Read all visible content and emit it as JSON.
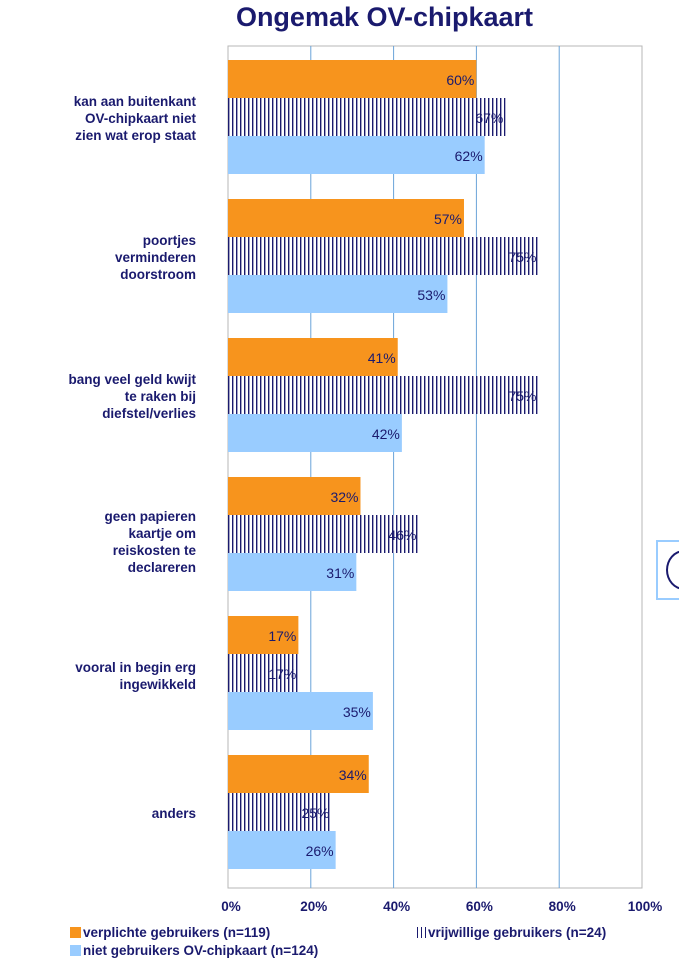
{
  "chart_data": {
    "type": "bar",
    "orientation": "horizontal",
    "title": "Ongemak OV-chipkaart",
    "categories": [
      "kan aan buitenkant OV-chipkaart niet zien wat erop staat",
      "poortjes verminderen doorstroom",
      "bang veel geld kwijt te raken bij diefstel/verlies",
      "geen papieren kaartje om reiskosten te declareren",
      "vooral in begin erg ingewikkeld",
      "anders"
    ],
    "series": [
      {
        "name": "verplichte gebruikers (n=119)",
        "color": "#f7941d",
        "pattern": "solid",
        "values": [
          60,
          57,
          41,
          32,
          17,
          34
        ],
        "labels": [
          "60%",
          "57%",
          "41%",
          "32%",
          "17%",
          "34%"
        ]
      },
      {
        "name": "vrijwillige gebruikers (n=24)",
        "color": "#1a1a6e",
        "pattern": "vertical-stripes",
        "values": [
          67,
          75,
          75,
          46,
          17,
          25
        ],
        "labels": [
          "67%",
          "75%",
          "75%",
          "46%",
          "17%",
          "25%"
        ]
      },
      {
        "name": "niet gebruikers OV-chipkaart (n=124)",
        "color": "#99ccff",
        "pattern": "solid",
        "values": [
          62,
          53,
          42,
          31,
          35,
          26
        ],
        "labels": [
          "62%",
          "53%",
          "42%",
          "31%",
          "35%",
          "26%"
        ]
      }
    ],
    "xlim": [
      0,
      100
    ],
    "xticks": [
      "0%",
      "20%",
      "40%",
      "60%",
      "80%",
      "100%"
    ],
    "grid": true,
    "legend_position": "bottom"
  }
}
